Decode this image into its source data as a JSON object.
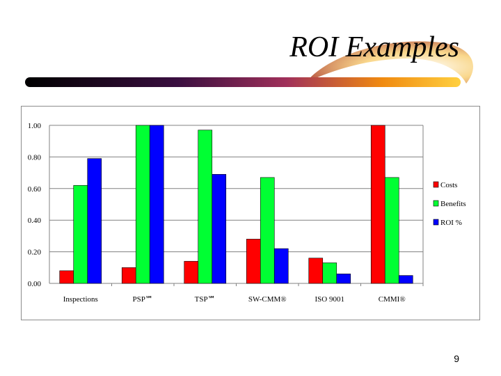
{
  "slide": {
    "title": "ROI Examples",
    "page_number": "9"
  },
  "colors": {
    "swoosh_dark": "#000000",
    "swoosh_mid": "#7a1f5c",
    "swoosh_orange": "#f5a300",
    "swoosh_light": "#fde9a8"
  },
  "chart_data": {
    "type": "bar",
    "categories": [
      "Inspections",
      "PSP℠",
      "TSP℠",
      "SW-CMM®",
      "ISO 9001",
      "CMMI®"
    ],
    "series": [
      {
        "name": "Costs",
        "color": "#ff0000",
        "values": [
          0.08,
          0.1,
          0.14,
          0.28,
          0.16,
          1.0
        ]
      },
      {
        "name": "Benefits",
        "color": "#00ff33",
        "values": [
          0.62,
          1.0,
          0.97,
          0.67,
          0.13,
          0.67
        ]
      },
      {
        "name": "ROI %",
        "color": "#0000ff",
        "values": [
          0.79,
          1.0,
          0.69,
          0.22,
          0.06,
          0.05
        ]
      }
    ],
    "ylim": [
      0,
      1.0
    ],
    "yticks": [
      "0.00",
      "0.20",
      "0.40",
      "0.60",
      "0.80",
      "1.00"
    ],
    "grid": true,
    "legend": "right",
    "title": "",
    "xlabel": "",
    "ylabel": ""
  }
}
